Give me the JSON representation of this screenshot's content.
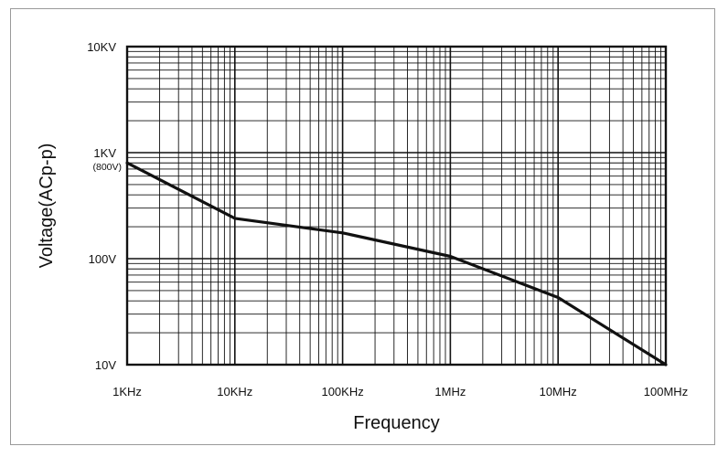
{
  "chart_data": {
    "type": "line",
    "xscale": "log",
    "yscale": "log",
    "xlabel": "Frequency",
    "ylabel": "Voltage(ACp-p)",
    "xlim": [
      1000,
      100000000
    ],
    "ylim": [
      10,
      10000
    ],
    "grid": true,
    "x_ticks": [
      {
        "value": 1000,
        "label": "1KHz"
      },
      {
        "value": 10000,
        "label": "10KHz"
      },
      {
        "value": 100000,
        "label": "100KHz"
      },
      {
        "value": 1000000,
        "label": "1MHz"
      },
      {
        "value": 10000000,
        "label": "10MHz"
      },
      {
        "value": 100000000,
        "label": "100MHz"
      }
    ],
    "y_ticks": [
      {
        "value": 10,
        "label": "10V"
      },
      {
        "value": 100,
        "label": "100V"
      },
      {
        "value": 1000,
        "label": "1KV"
      },
      {
        "value": 10000,
        "label": "10KV"
      }
    ],
    "annotations": [
      {
        "text": "(800V)",
        "y": 800
      }
    ],
    "series": [
      {
        "x": [
          1000,
          10000,
          100000,
          1000000,
          10000000,
          100000000
        ],
        "y": [
          800,
          240,
          175,
          105,
          43,
          10
        ]
      }
    ],
    "colors": {
      "line": "#111111",
      "grid": "#111111",
      "frame": "#111111"
    }
  }
}
